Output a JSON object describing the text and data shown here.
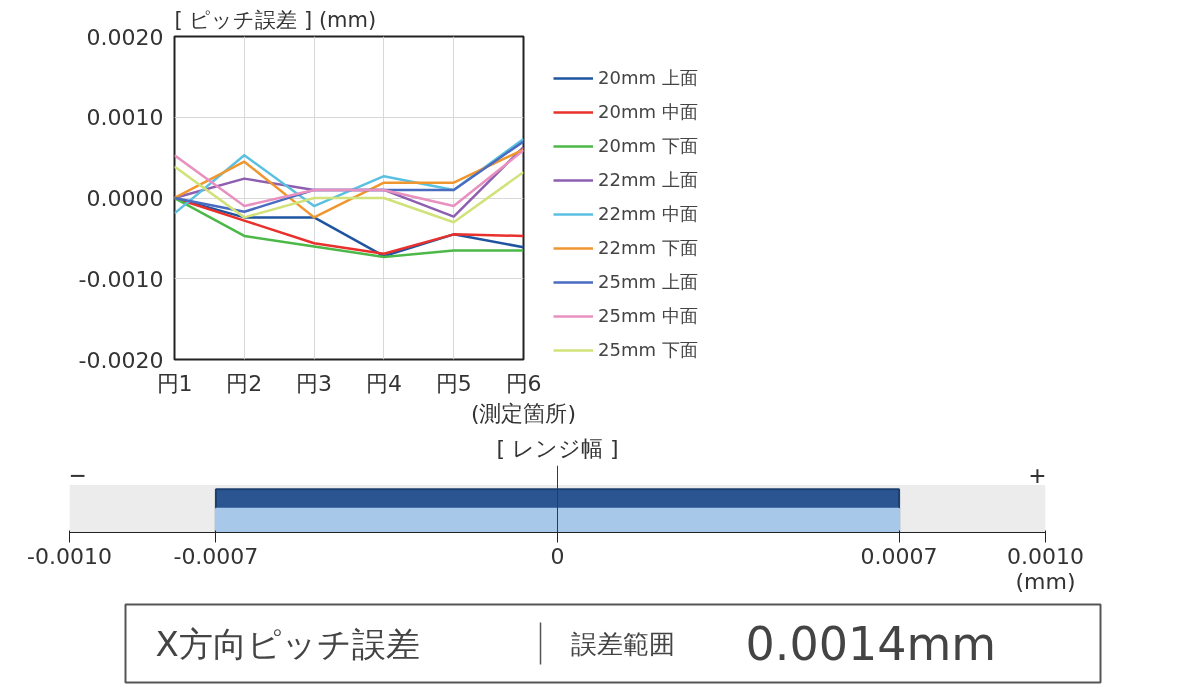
{
  "chart_data": [
    {
      "type": "line",
      "ylabel": "[ ピッチ誤差 ] (mm)",
      "xlabel": "(測定箇所)",
      "categories": [
        "円1",
        "円2",
        "円3",
        "円4",
        "円5",
        "円6"
      ],
      "series": [
        {
          "name": "20mm 上面",
          "color": "#1f55a0",
          "values": [
            0,
            -0.00024,
            -0.00024,
            -0.00072,
            -0.00045,
            -0.00061
          ]
        },
        {
          "name": "20mm 中面",
          "color": "#e8302c",
          "values": [
            0,
            -0.00028,
            -0.00056,
            -0.00069,
            -0.00045,
            -0.00047
          ]
        },
        {
          "name": "20mm 下面",
          "color": "#4cb848",
          "values": [
            0,
            -0.00047,
            -0.0006,
            -0.00073,
            -0.00065,
            -0.00065
          ]
        },
        {
          "name": "22mm 上面",
          "color": "#8e5fb0",
          "values": [
            0,
            0.00024,
            0.0001,
            0.0001,
            -0.00023,
            0.00063
          ]
        },
        {
          "name": "22mm 中面",
          "color": "#5bc0e0",
          "values": [
            -0.00019,
            0.00053,
            -0.0001,
            0.00027,
            0.0001,
            0.00073
          ]
        },
        {
          "name": "22mm 下面",
          "color": "#f0962e",
          "values": [
            0,
            0.00045,
            -0.00024,
            0.00019,
            0.00019,
            0.0006
          ]
        },
        {
          "name": "25mm 上面",
          "color": "#4a6cc0",
          "values": [
            0,
            -0.00017,
            0.0001,
            0.0001,
            0.0001,
            0.0007
          ]
        },
        {
          "name": "25mm 中面",
          "color": "#e890c0",
          "values": [
            0.00053,
            -0.0001,
            0.0001,
            0.0001,
            -0.0001,
            0.00059
          ]
        },
        {
          "name": "25mm 下面",
          "color": "#d2e27a",
          "values": [
            0.00039,
            -0.00024,
            0,
            0,
            -0.0003,
            0.00032
          ]
        }
      ],
      "ylim": [
        -0.002,
        0.002
      ],
      "yticks": [
        {
          "value": -0.002,
          "label": "-0.0020"
        },
        {
          "value": -0.001,
          "label": "-0.0010"
        },
        {
          "value": 0,
          "label": "0.0000"
        },
        {
          "value": 0.001,
          "label": "0.0010"
        },
        {
          "value": 0.002,
          "label": "0.0020"
        }
      ],
      "grid": true,
      "legend": "right"
    },
    {
      "type": "bar",
      "orientation": "horizontal",
      "title": "[ レンジ幅 ]",
      "xlabel": "(mm)",
      "categories": [
        null
      ],
      "series": [
        {
          "color": "#2a5590",
          "base": [
            -0.0007
          ],
          "values": [
            0.0014
          ]
        },
        {
          "color": "#a8c8ea",
          "base": [
            -0.0007
          ],
          "values": [
            0.0014
          ]
        }
      ],
      "xlim": [
        -0.001,
        0.001
      ],
      "xticks": [
        {
          "value": -0.001,
          "label": "-0.0010"
        },
        {
          "value": -0.0007,
          "label": "-0.0007"
        },
        0,
        {
          "value": 0.0007,
          "label": "0.0007"
        },
        {
          "value": 0.001,
          "label": "0.0010"
        }
      ],
      "bands": [
        {
          "axis": "x",
          "from": -0.001,
          "to": 0.001,
          "color": "#ececec"
        }
      ],
      "annotations": [
        "−",
        "+"
      ],
      "tick_labels": "x"
    },
    {
      "type": "other",
      "annotations": [
        "X方向ピッチ誤差",
        "誤差範囲",
        "0.0014mm"
      ]
    }
  ]
}
